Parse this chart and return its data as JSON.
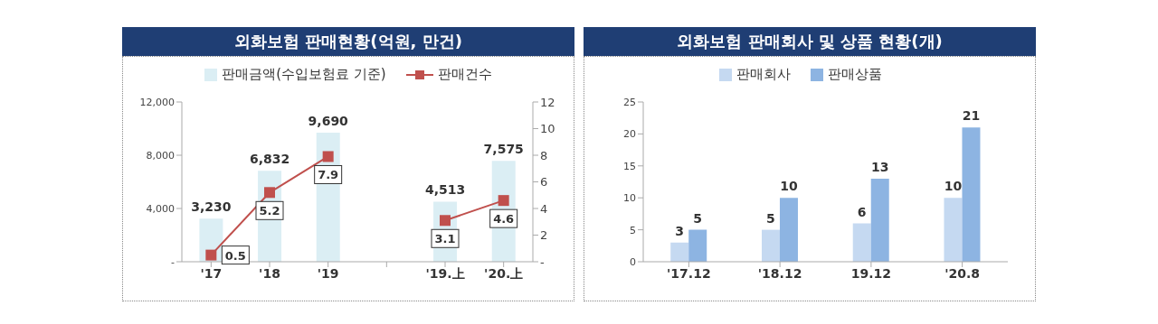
{
  "chart_data": [
    {
      "type": "bar",
      "title": "외화보험 판매현황(억원, 만건)",
      "categories": [
        "'17",
        "'18",
        "'19",
        null,
        "'19.上",
        "'20.上"
      ],
      "series": [
        {
          "name": "판매금액(수입보험료 기준)",
          "type": "bar",
          "color": "#dbeef4",
          "values": [
            3230,
            6832,
            9690,
            null,
            4513,
            7575
          ],
          "value_labels": [
            "3,230",
            "6,832",
            "9,690",
            null,
            "4,513",
            "7,575"
          ]
        },
        {
          "name": "판매건수",
          "type": "line",
          "axis": "y2",
          "color": "#c0504d",
          "marker": "square",
          "values": [
            0.5,
            5.2,
            7.9,
            null,
            3.1,
            4.6
          ],
          "value_labels": [
            "0.5",
            "5.2",
            "7.9",
            null,
            "3.1",
            "4.6"
          ]
        }
      ],
      "ylim": [
        0,
        12000
      ],
      "yticks": [
        {
          "value": 0,
          "label": "-"
        },
        {
          "value": 4000,
          "label": "4,000"
        },
        {
          "value": 8000,
          "label": "8,000"
        },
        {
          "value": 12000,
          "label": "12,000"
        }
      ],
      "y2lim": [
        0,
        12
      ],
      "y2ticks": [
        {
          "value": 0,
          "label": "-"
        },
        2,
        4,
        6,
        8,
        10,
        12
      ],
      "legend": "top",
      "grid": false
    },
    {
      "type": "bar",
      "title": "외화보험 판매회사 및 상품 현황(개)",
      "categories": [
        "'17.12",
        "'18.12",
        "19.12",
        "'20.8"
      ],
      "series": [
        {
          "name": "판매회사",
          "color": "#c5d9f1",
          "values": [
            3,
            5,
            6,
            10
          ]
        },
        {
          "name": "판매상품",
          "color": "#8db4e2",
          "values": [
            5,
            10,
            13,
            21
          ]
        }
      ],
      "ylim": [
        0,
        25
      ],
      "yticks": [
        0,
        5,
        10,
        15,
        20,
        25
      ],
      "data_labels": true,
      "legend": "top",
      "grid": false
    }
  ]
}
